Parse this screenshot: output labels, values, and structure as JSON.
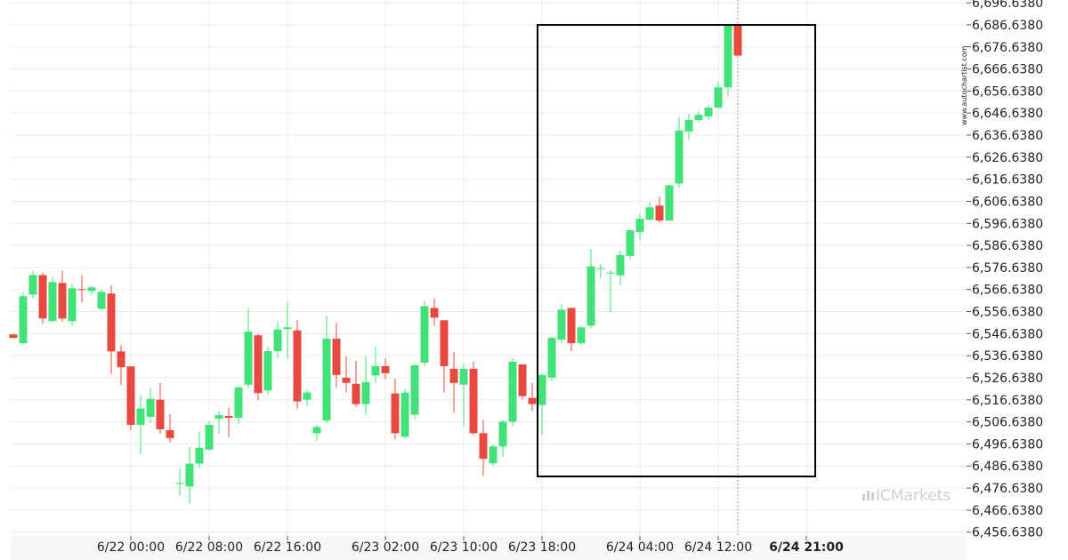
{
  "chart_data": {
    "type": "candlestick",
    "title": "",
    "xlabel": "",
    "ylabel": "",
    "ylim": [
      6454.9,
      6697.9
    ],
    "grid": true,
    "y_ticks": [
      6456.638,
      6466.638,
      6476.638,
      6486.638,
      6496.638,
      6506.638,
      6516.638,
      6526.638,
      6536.638,
      6546.638,
      6556.638,
      6566.638,
      6576.638,
      6586.638,
      6596.638,
      6606.638,
      6616.638,
      6626.638,
      6636.638,
      6646.638,
      6656.638,
      6666.638,
      6676.638,
      6686.638,
      6696.638
    ],
    "y_tick_labels": [
      "6,456.6380",
      "6,466.6380",
      "6,476.6380",
      "6,486.6380",
      "6,496.6380",
      "6,506.6380",
      "6,516.6380",
      "6,526.6380",
      "6,536.6380",
      "6,546.6380",
      "6,556.6380",
      "6,566.6380",
      "6,576.6380",
      "6,586.6380",
      "6,596.6380",
      "6,606.6380",
      "6,616.6380",
      "6,626.6380",
      "6,636.6380",
      "6,646.6380",
      "6,656.6380",
      "6,666.6380",
      "6,676.6380",
      "6,686.6380",
      "6,696.6380"
    ],
    "x_tick_labels": [
      {
        "label": "6/22 00:00",
        "index": 12,
        "bold": false
      },
      {
        "label": "6/22 08:00",
        "index": 20,
        "bold": false
      },
      {
        "label": "6/22 16:00",
        "index": 28,
        "bold": false
      },
      {
        "label": "6/23 02:00",
        "index": 38,
        "bold": false
      },
      {
        "label": "6/23 10:00",
        "index": 46,
        "bold": false
      },
      {
        "label": "6/23 18:00",
        "index": 54,
        "bold": false
      },
      {
        "label": "6/24 04:00",
        "index": 64,
        "bold": false
      },
      {
        "label": "6/24 12:00",
        "index": 72,
        "bold": false
      },
      {
        "label": "6/24 21:00",
        "index": 81,
        "bold": true
      }
    ],
    "candles": [
      {
        "o": 6546.3,
        "h": 6546.3,
        "l": 6544.7,
        "c": 6544.7
      },
      {
        "o": 6542.3,
        "h": 6565.4,
        "l": 6541.9,
        "c": 6563.6
      },
      {
        "o": 6564.4,
        "h": 6575.2,
        "l": 6562.6,
        "c": 6573.2
      },
      {
        "o": 6573.2,
        "h": 6574.4,
        "l": 6551.1,
        "c": 6553.5
      },
      {
        "o": 6552.3,
        "h": 6572.4,
        "l": 6552.3,
        "c": 6570.0
      },
      {
        "o": 6569.6,
        "h": 6575.2,
        "l": 6551.9,
        "c": 6553.5
      },
      {
        "o": 6552.3,
        "h": 6569.2,
        "l": 6550.3,
        "c": 6567.2
      },
      {
        "o": 6566.8,
        "h": 6573.2,
        "l": 6560.8,
        "c": 6566.4
      },
      {
        "o": 6566.0,
        "h": 6568.4,
        "l": 6564.0,
        "c": 6567.6
      },
      {
        "o": 6557.9,
        "h": 6566.4,
        "l": 6557.5,
        "c": 6565.6
      },
      {
        "o": 6564.8,
        "h": 6568.4,
        "l": 6528.2,
        "c": 6538.6
      },
      {
        "o": 6538.6,
        "h": 6541.4,
        "l": 6523.4,
        "c": 6531.4
      },
      {
        "o": 6531.8,
        "h": 6531.8,
        "l": 6502.9,
        "c": 6505.3
      },
      {
        "o": 6505.3,
        "h": 6518.7,
        "l": 6491.9,
        "c": 6512.7
      },
      {
        "o": 6508.9,
        "h": 6522.3,
        "l": 6506.1,
        "c": 6517.1
      },
      {
        "o": 6516.7,
        "h": 6524.3,
        "l": 6501.3,
        "c": 6503.3
      },
      {
        "o": 6502.9,
        "h": 6510.1,
        "l": 6497.3,
        "c": 6499.3
      },
      {
        "o": 6478.9,
        "h": 6485.5,
        "l": 6473.3,
        "c": 6478.9
      },
      {
        "o": 6477.3,
        "h": 6495.3,
        "l": 6469.5,
        "c": 6487.7
      },
      {
        "o": 6487.7,
        "h": 6502.1,
        "l": 6485.7,
        "c": 6494.9
      },
      {
        "o": 6494.1,
        "h": 6506.9,
        "l": 6493.7,
        "c": 6505.3
      },
      {
        "o": 6508.1,
        "h": 6511.3,
        "l": 6501.3,
        "c": 6509.7
      },
      {
        "o": 6509.3,
        "h": 6513.1,
        "l": 6499.7,
        "c": 6508.5
      },
      {
        "o": 6508.5,
        "h": 6522.7,
        "l": 6505.9,
        "c": 6522.3
      },
      {
        "o": 6523.5,
        "h": 6558.3,
        "l": 6521.9,
        "c": 6547.5
      },
      {
        "o": 6545.9,
        "h": 6546.7,
        "l": 6516.5,
        "c": 6519.7
      },
      {
        "o": 6520.9,
        "h": 6540.7,
        "l": 6518.9,
        "c": 6538.7
      },
      {
        "o": 6538.7,
        "h": 6552.3,
        "l": 6535.5,
        "c": 6548.5
      },
      {
        "o": 6548.7,
        "h": 6560.7,
        "l": 6535.5,
        "c": 6549.5
      },
      {
        "o": 6548.1,
        "h": 6552.7,
        "l": 6512.7,
        "c": 6515.9
      },
      {
        "o": 6516.7,
        "h": 6521.5,
        "l": 6513.9,
        "c": 6519.9
      },
      {
        "o": 6501.5,
        "h": 6505.3,
        "l": 6498.0,
        "c": 6504.3
      },
      {
        "o": 6507.3,
        "h": 6554.7,
        "l": 6506.1,
        "c": 6544.3
      },
      {
        "o": 6544.3,
        "h": 6551.5,
        "l": 6522.3,
        "c": 6527.9
      },
      {
        "o": 6526.7,
        "h": 6536.3,
        "l": 6519.9,
        "c": 6524.3
      },
      {
        "o": 6523.9,
        "h": 6534.3,
        "l": 6513.5,
        "c": 6514.7
      },
      {
        "o": 6514.7,
        "h": 6536.3,
        "l": 6509.9,
        "c": 6524.7
      },
      {
        "o": 6527.7,
        "h": 6540.7,
        "l": 6524.3,
        "c": 6531.9
      },
      {
        "o": 6531.9,
        "h": 6535.5,
        "l": 6525.9,
        "c": 6528.7
      },
      {
        "o": 6519.5,
        "h": 6526.3,
        "l": 6498.7,
        "c": 6501.5
      },
      {
        "o": 6499.9,
        "h": 6521.5,
        "l": 6499.1,
        "c": 6519.9
      },
      {
        "o": 6509.9,
        "h": 6532.7,
        "l": 6507.9,
        "c": 6532.3
      },
      {
        "o": 6533.5,
        "h": 6561.5,
        "l": 6531.9,
        "c": 6559.1
      },
      {
        "o": 6558.3,
        "h": 6562.7,
        "l": 6550.3,
        "c": 6553.9
      },
      {
        "o": 6552.7,
        "h": 6552.7,
        "l": 6519.9,
        "c": 6531.9
      },
      {
        "o": 6530.7,
        "h": 6538.3,
        "l": 6510.7,
        "c": 6524.3
      },
      {
        "o": 6523.5,
        "h": 6533.1,
        "l": 6504.7,
        "c": 6530.7
      },
      {
        "o": 6530.7,
        "h": 6533.9,
        "l": 6500.7,
        "c": 6501.5
      },
      {
        "o": 6501.5,
        "h": 6507.5,
        "l": 6482.3,
        "c": 6489.9
      },
      {
        "o": 6487.9,
        "h": 6496.7,
        "l": 6486.7,
        "c": 6495.5
      },
      {
        "o": 6495.5,
        "h": 6507.9,
        "l": 6490.7,
        "c": 6506.7
      },
      {
        "o": 6506.7,
        "h": 6535.5,
        "l": 6504.7,
        "c": 6533.9
      },
      {
        "o": 6532.7,
        "h": 6532.7,
        "l": 6516.7,
        "c": 6518.3
      },
      {
        "o": 6517.5,
        "h": 6524.3,
        "l": 6511.5,
        "c": 6514.7
      },
      {
        "o": 6514.3,
        "h": 6528.7,
        "l": 6500.7,
        "c": 6527.9
      },
      {
        "o": 6526.7,
        "h": 6545.1,
        "l": 6525.1,
        "c": 6544.7
      },
      {
        "o": 6543.9,
        "h": 6559.9,
        "l": 6542.3,
        "c": 6557.5
      },
      {
        "o": 6558.3,
        "h": 6558.3,
        "l": 6538.7,
        "c": 6542.3
      },
      {
        "o": 6542.3,
        "h": 6550.3,
        "l": 6541.5,
        "c": 6549.5
      },
      {
        "o": 6550.3,
        "h": 6585.1,
        "l": 6549.1,
        "c": 6577.1
      },
      {
        "o": 6576.3,
        "h": 6578.3,
        "l": 6571.5,
        "c": 6576.3
      },
      {
        "o": 6574.3,
        "h": 6575.5,
        "l": 6556.3,
        "c": 6574.3
      },
      {
        "o": 6573.1,
        "h": 6584.3,
        "l": 6568.7,
        "c": 6582.3
      },
      {
        "o": 6581.9,
        "h": 6593.9,
        "l": 6580.3,
        "c": 6593.5
      },
      {
        "o": 6592.7,
        "h": 6601.1,
        "l": 6588.7,
        "c": 6598.7
      },
      {
        "o": 6598.3,
        "h": 6606.3,
        "l": 6597.9,
        "c": 6603.9
      },
      {
        "o": 6604.7,
        "h": 6608.7,
        "l": 6597.1,
        "c": 6597.9
      },
      {
        "o": 6597.9,
        "h": 6614.3,
        "l": 6597.9,
        "c": 6613.9
      },
      {
        "o": 6614.7,
        "h": 6644.7,
        "l": 6612.7,
        "c": 6638.7
      },
      {
        "o": 6638.3,
        "h": 6646.3,
        "l": 6634.7,
        "c": 6643.5
      },
      {
        "o": 6643.5,
        "h": 6647.5,
        "l": 6642.3,
        "c": 6645.9
      },
      {
        "o": 6645.1,
        "h": 6650.3,
        "l": 6643.5,
        "c": 6649.1
      },
      {
        "o": 6649.1,
        "h": 6661.1,
        "l": 6648.7,
        "c": 6658.3
      },
      {
        "o": 6658.3,
        "h": 6687.1,
        "l": 6654.3,
        "c": 6686.3
      },
      {
        "o": 6686.3,
        "h": 6687.1,
        "l": 6672.3,
        "c": 6672.7
      }
    ],
    "annotation_box": {
      "from_index": 54,
      "to_index": 81,
      "low": 6481.9,
      "high": 6686.6
    }
  },
  "watermark": {
    "site": "www.autochartist.com",
    "brand": "ICMarkets"
  },
  "colors": {
    "up": "#41e27a",
    "down": "#e8483f",
    "grid": "#ebebeb",
    "axis_bg": "#f7f7f7",
    "box": "#000000"
  }
}
